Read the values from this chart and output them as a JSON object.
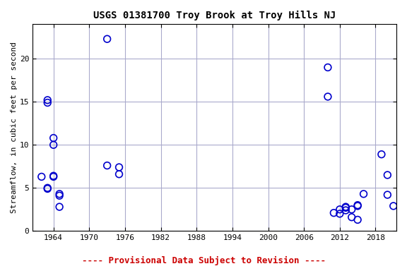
{
  "title": "USGS 01381700 Troy Brook at Troy Hills NJ",
  "ylabel": "Streamflow, in cubic feet per second",
  "footer": "---- Provisional Data Subject to Revision ----",
  "footer_color": "#cc0000",
  "marker_color": "#0000cc",
  "marker_facecolor": "none",
  "marker_size": 7,
  "marker_linewidth": 1.2,
  "xlim": [
    1960.5,
    2021.5
  ],
  "ylim": [
    0,
    24
  ],
  "xticks": [
    1964,
    1970,
    1976,
    1982,
    1988,
    1994,
    2000,
    2006,
    2012,
    2018
  ],
  "yticks": [
    0,
    5,
    10,
    15,
    20
  ],
  "grid_color": "#aaaacc",
  "bg_color": "#ffffff",
  "title_fontsize": 10,
  "label_fontsize": 8,
  "tick_fontsize": 8,
  "footer_fontsize": 9,
  "data_x": [
    1962,
    1963,
    1963,
    1963,
    1963,
    1964,
    1964,
    1964,
    1964,
    1965,
    1965,
    1965,
    1973,
    1973,
    1975,
    1975,
    2010,
    2010,
    2011,
    2012,
    2012,
    2013,
    2013,
    2013,
    2014,
    2014,
    2015,
    2015,
    2015,
    2016,
    2019,
    2020,
    2020,
    2021
  ],
  "data_y": [
    6.3,
    15.2,
    14.9,
    4.9,
    5.0,
    10.0,
    10.8,
    6.4,
    6.3,
    4.1,
    2.8,
    4.3,
    22.3,
    7.6,
    7.4,
    6.6,
    19.0,
    15.6,
    2.1,
    2.5,
    2.0,
    2.8,
    2.7,
    2.4,
    2.5,
    1.6,
    3.0,
    2.9,
    1.3,
    4.3,
    8.9,
    6.5,
    4.2,
    2.9
  ]
}
